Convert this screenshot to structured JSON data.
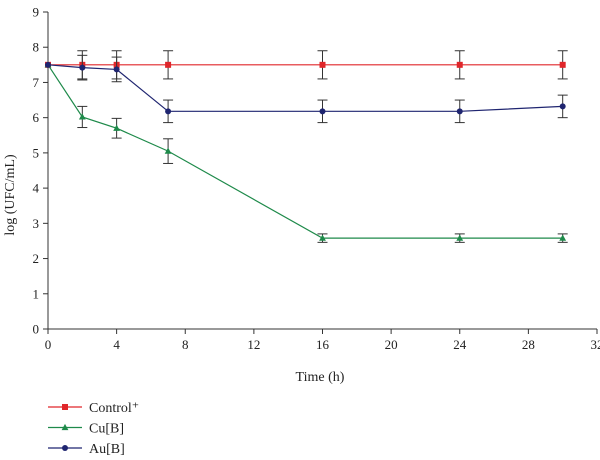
{
  "chart_data": {
    "type": "line",
    "xlabel": "Time (h)",
    "ylabel": "log (UFC/mL)",
    "xlim": [
      0,
      32
    ],
    "ylim": [
      0,
      9
    ],
    "xticks": [
      0,
      4,
      8,
      12,
      16,
      20,
      24,
      28,
      32
    ],
    "yticks": [
      0,
      1,
      2,
      3,
      4,
      5,
      6,
      7,
      8,
      9
    ],
    "grid": false,
    "legend_position": "bottom-left",
    "series": [
      {
        "name": "Control⁺",
        "color": "#e0262a",
        "marker": "square",
        "x": [
          0,
          2,
          4,
          7,
          16,
          24,
          30
        ],
        "y": [
          7.5,
          7.5,
          7.5,
          7.5,
          7.5,
          7.5,
          7.5
        ],
        "err": [
          0.0,
          0.4,
          0.4,
          0.4,
          0.4,
          0.4,
          0.4
        ]
      },
      {
        "name": "Cu[B]",
        "color": "#1e8a4a",
        "marker": "triangle",
        "x": [
          0,
          2,
          4,
          7,
          16,
          24,
          30
        ],
        "y": [
          7.5,
          6.02,
          5.7,
          5.05,
          2.58,
          2.58,
          2.58
        ],
        "err": [
          0.0,
          0.3,
          0.28,
          0.35,
          0.12,
          0.12,
          0.12
        ]
      },
      {
        "name": "Au[B]",
        "color": "#1f2570",
        "marker": "circle",
        "x": [
          0,
          2,
          4,
          7,
          16,
          24,
          30
        ],
        "y": [
          7.5,
          7.42,
          7.37,
          6.18,
          6.18,
          6.18,
          6.32
        ],
        "err": [
          0.0,
          0.35,
          0.35,
          0.32,
          0.32,
          0.32,
          0.32
        ]
      }
    ]
  }
}
